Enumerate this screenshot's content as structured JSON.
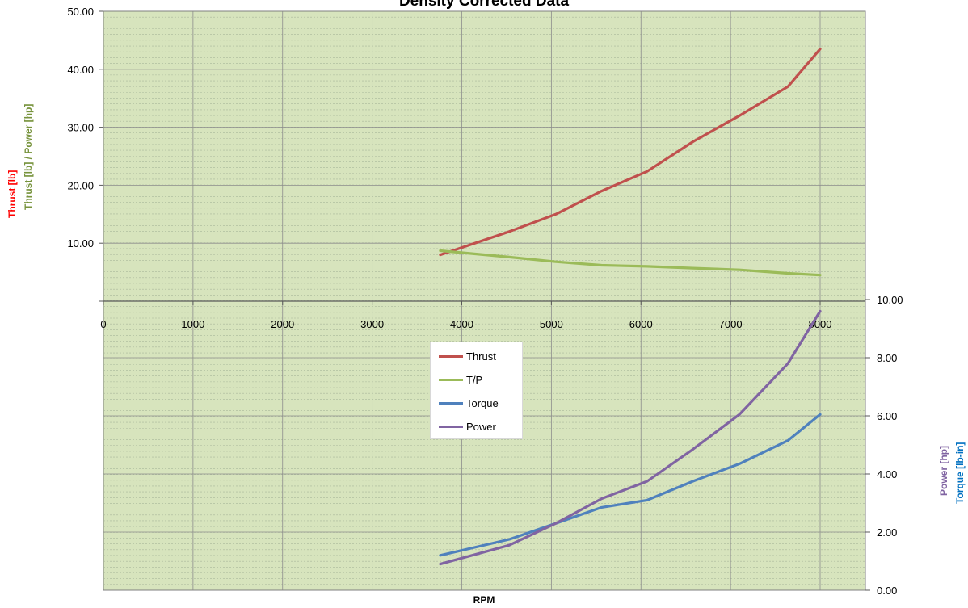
{
  "chart_data": {
    "type": "line",
    "title": "Density Corrected Data",
    "xlabel": "RPM",
    "x_ticks": [
      "0",
      "1000",
      "2000",
      "3000",
      "4000",
      "5000",
      "6000",
      "7000",
      "8000"
    ],
    "x_range": [
      0,
      8500
    ],
    "upper_panel": {
      "y_axis_labels": [
        "Thrust [lb]",
        "Thrust [lb] / Power [hp]"
      ],
      "y_ticks": [
        "10.00",
        "20.00",
        "30.00",
        "40.00",
        "50.00"
      ],
      "y_range": [
        0,
        50
      ]
    },
    "lower_panel": {
      "y_axis_labels": [
        "Power [hp]",
        "Torque [lb-in]"
      ],
      "y_ticks": [
        "0.00",
        "2.00",
        "4.00",
        "6.00",
        "8.00",
        "10.00"
      ],
      "y_range": [
        0,
        10
      ]
    },
    "grid": true,
    "legend_position": "center",
    "series": [
      {
        "name": "Thrust",
        "panel": "upper",
        "color": "#c0504d",
        "x": [
          3760,
          4530,
          5050,
          5560,
          6070,
          6580,
          7100,
          7640,
          8000
        ],
        "y": [
          8.0,
          12.0,
          15.0,
          19.0,
          22.4,
          27.5,
          32.0,
          37.0,
          43.5
        ]
      },
      {
        "name": "T/P",
        "panel": "upper",
        "color": "#9bbb59",
        "x": [
          3760,
          4530,
          5050,
          5560,
          6070,
          6580,
          7100,
          7640,
          8000
        ],
        "y": [
          8.7,
          7.6,
          6.8,
          6.2,
          6.0,
          5.7,
          5.4,
          4.8,
          4.5
        ]
      },
      {
        "name": "Torque",
        "panel": "lower",
        "color": "#4f81bd",
        "x": [
          3760,
          4530,
          5050,
          5560,
          6070,
          6580,
          7100,
          7640,
          8000
        ],
        "y": [
          1.2,
          1.75,
          2.3,
          2.85,
          3.1,
          3.75,
          4.35,
          5.15,
          6.05
        ]
      },
      {
        "name": "Power",
        "panel": "lower",
        "color": "#8064a2",
        "x": [
          3760,
          4530,
          5050,
          5560,
          6070,
          6580,
          7100,
          7640,
          8000
        ],
        "y": [
          0.9,
          1.55,
          2.3,
          3.15,
          3.75,
          4.85,
          6.05,
          7.8,
          9.6
        ]
      }
    ]
  },
  "colors": {
    "plot_background": "#d7e4bd",
    "minor_grid": "#a8b69a",
    "major_grid": "#8c8c8c",
    "thrust_label": "#ff0000",
    "tp_label": "#77933c",
    "power_label": "#8064a2",
    "torque_label": "#0070c0"
  }
}
